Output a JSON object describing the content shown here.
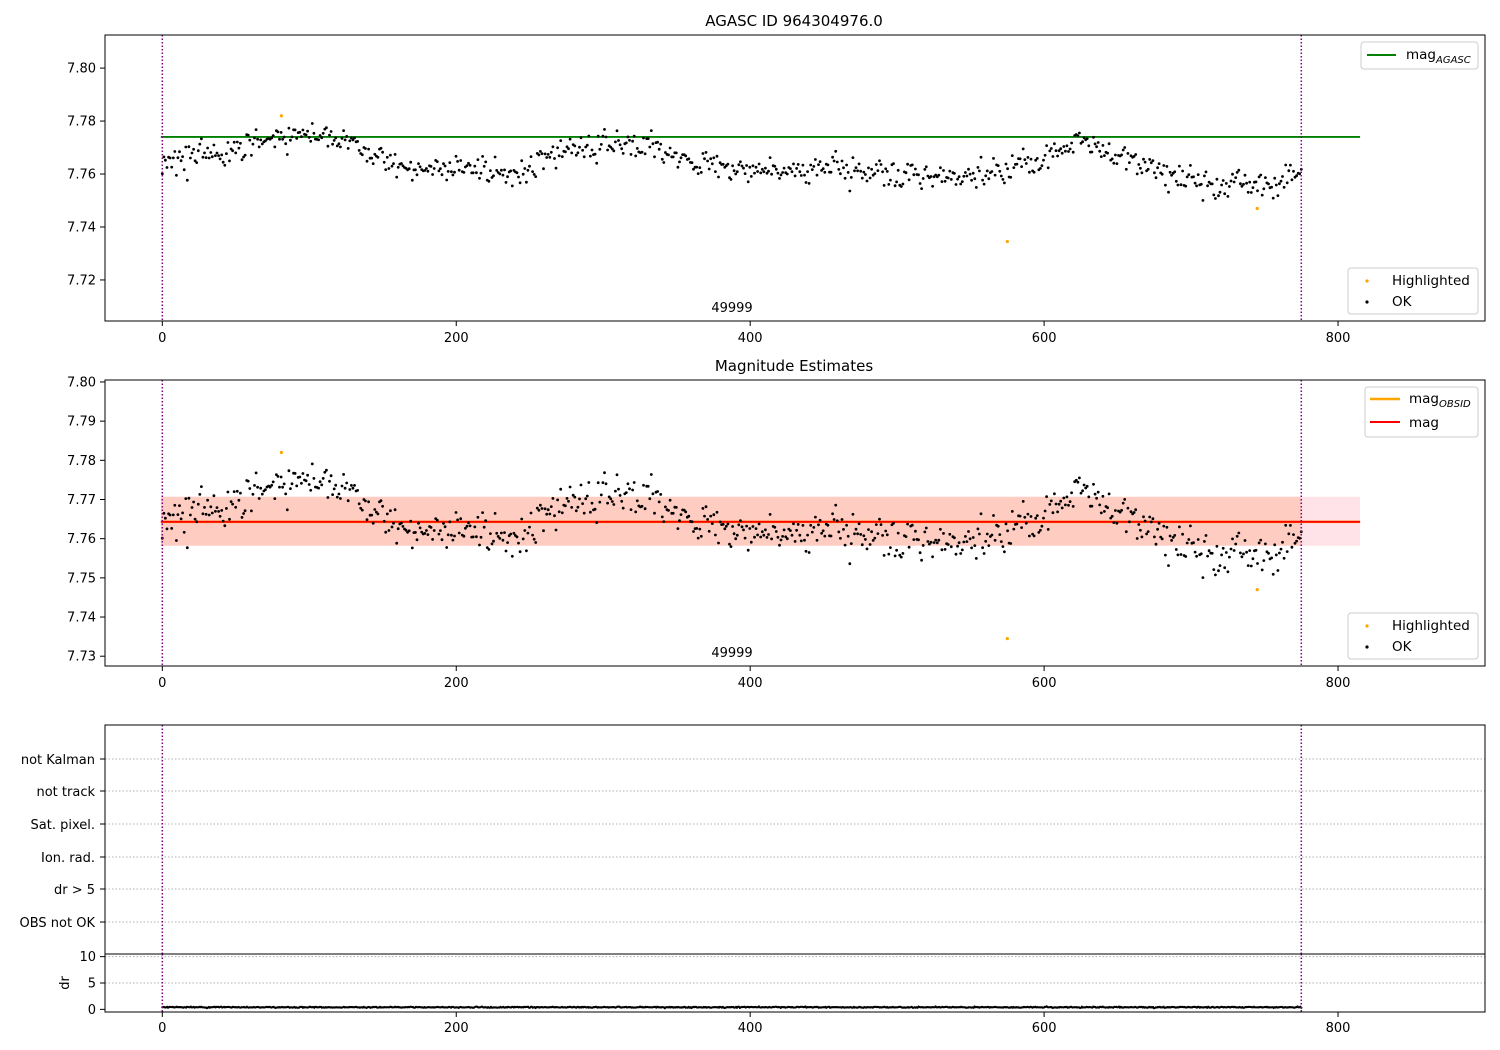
{
  "colors": {
    "agasc_line": "#008000",
    "obsid_line": "#ffa500",
    "mag_line": "#ff0000",
    "band_fill": "#ffc0cb",
    "band_inner": "#ffa07a",
    "ok_points": "#000000",
    "highlighted_points": "#ffa500",
    "vline": "#800080"
  },
  "chart_data": [
    {
      "type": "scatter",
      "title": "AGASC ID 964304976.0",
      "annotation": "49999",
      "xlim": [
        -39,
        900
      ],
      "ylim": [
        7.7045,
        7.8125
      ],
      "xticks": [
        0,
        200,
        400,
        600,
        800
      ],
      "yticks": [
        7.72,
        7.74,
        7.76,
        7.78,
        7.8
      ],
      "ytick_labels": [
        "7.72",
        "7.74",
        "7.76",
        "7.78",
        "7.80"
      ],
      "vlines": [
        0,
        775
      ],
      "hlines": [
        {
          "name": "mag_AGASC",
          "y": 7.774,
          "x": [
            -1,
            815
          ]
        }
      ],
      "legend_top": {
        "position": "top-right",
        "entries": [
          {
            "label": "mag",
            "sub": "AGASC",
            "kind": "line",
            "color_key": "agasc_line"
          }
        ]
      },
      "legend_bottom": {
        "position": "bottom-right",
        "entries": [
          {
            "label": "Highlighted",
            "kind": "point",
            "color_key": "highlighted_points"
          },
          {
            "label": "OK",
            "kind": "point",
            "color_key": "ok_points"
          }
        ]
      },
      "series": [
        {
          "name": "Highlighted",
          "points": [
            [
              81,
              7.782
            ],
            [
              575,
              7.7345
            ],
            [
              745,
              7.747
            ]
          ]
        },
        {
          "name": "OK",
          "profile": [
            [
              0,
              7.765
            ],
            [
              30,
              7.767
            ],
            [
              60,
              7.771
            ],
            [
              80,
              7.774
            ],
            [
              125,
              7.773
            ],
            [
              150,
              7.765
            ],
            [
              170,
              7.761
            ],
            [
              200,
              7.7615
            ],
            [
              240,
              7.7605
            ],
            [
              270,
              7.768
            ],
            [
              300,
              7.7715
            ],
            [
              340,
              7.77
            ],
            [
              360,
              7.764
            ],
            [
              400,
              7.762
            ],
            [
              450,
              7.762
            ],
            [
              500,
              7.7595
            ],
            [
              550,
              7.759
            ],
            [
              580,
              7.763
            ],
            [
              600,
              7.766
            ],
            [
              625,
              7.773
            ],
            [
              650,
              7.767
            ],
            [
              680,
              7.76
            ],
            [
              720,
              7.755
            ],
            [
              750,
              7.755
            ],
            [
              775,
              7.762
            ]
          ],
          "count": 730,
          "scatter": 0.0065
        }
      ]
    },
    {
      "type": "scatter",
      "title": "Magnitude Estimates",
      "annotation": "49999",
      "xlim": [
        -39,
        900
      ],
      "ylim": [
        7.7275,
        7.8005
      ],
      "xticks": [
        0,
        200,
        400,
        600,
        800
      ],
      "yticks": [
        7.73,
        7.74,
        7.75,
        7.76,
        7.77,
        7.78,
        7.79,
        7.8
      ],
      "ytick_labels": [
        "7.73",
        "7.74",
        "7.75",
        "7.76",
        "7.77",
        "7.78",
        "7.79",
        "7.80"
      ],
      "vlines": [
        0,
        775
      ],
      "hlines": [
        {
          "name": "mag_OBSID",
          "y": 7.7643,
          "x": [
            -1,
            815
          ]
        },
        {
          "name": "mag",
          "y": 7.7643,
          "x": [
            -1,
            815
          ]
        }
      ],
      "bands": [
        {
          "y": [
            7.7582,
            7.7707
          ],
          "x": [
            -1,
            815
          ],
          "color_key": "band_fill"
        },
        {
          "y": [
            7.7582,
            7.7707
          ],
          "x": [
            -1,
            775
          ],
          "color_key": "band_inner"
        }
      ],
      "legend_top": {
        "position": "top-right",
        "entries": [
          {
            "label": "mag",
            "sub": "OBSID",
            "kind": "line",
            "color_key": "obsid_line"
          },
          {
            "label": "mag",
            "sub": "",
            "kind": "line",
            "color_key": "mag_line"
          }
        ]
      },
      "legend_bottom": {
        "position": "bottom-right",
        "entries": [
          {
            "label": "Highlighted",
            "kind": "point",
            "color_key": "highlighted_points"
          },
          {
            "label": "OK",
            "kind": "point",
            "color_key": "ok_points"
          }
        ]
      },
      "series": [
        {
          "name": "Highlighted",
          "points": [
            [
              81,
              7.782
            ],
            [
              575,
              7.7345
            ],
            [
              745,
              7.747
            ]
          ]
        },
        {
          "name": "OK",
          "profile": [
            [
              0,
              7.765
            ],
            [
              30,
              7.767
            ],
            [
              60,
              7.771
            ],
            [
              80,
              7.774
            ],
            [
              125,
              7.773
            ],
            [
              150,
              7.765
            ],
            [
              170,
              7.761
            ],
            [
              200,
              7.7615
            ],
            [
              240,
              7.7605
            ],
            [
              270,
              7.768
            ],
            [
              300,
              7.7715
            ],
            [
              340,
              7.77
            ],
            [
              360,
              7.764
            ],
            [
              400,
              7.762
            ],
            [
              450,
              7.762
            ],
            [
              500,
              7.7595
            ],
            [
              550,
              7.759
            ],
            [
              580,
              7.763
            ],
            [
              600,
              7.766
            ],
            [
              625,
              7.773
            ],
            [
              650,
              7.767
            ],
            [
              680,
              7.76
            ],
            [
              720,
              7.755
            ],
            [
              750,
              7.755
            ],
            [
              775,
              7.762
            ]
          ],
          "count": 730,
          "scatter": 0.0065
        }
      ]
    },
    {
      "type": "scatter",
      "title": "",
      "xlim": [
        -39,
        900
      ],
      "vlines": [
        0,
        775
      ],
      "flag_rows": [
        "not Kalman",
        "not track",
        "Sat. pixel.",
        "Ion. rad.",
        "dr > 5",
        "OBS not OK"
      ],
      "dr_panel": {
        "ylabel": "dr",
        "ylim": [
          -0.5,
          10.5
        ],
        "yticks": [
          0,
          5,
          10
        ],
        "ytick_labels": [
          "0",
          "5",
          "10"
        ],
        "xticks": [
          0,
          200,
          400,
          600,
          800
        ],
        "gridlines": [
          5,
          10
        ],
        "series": [
          {
            "name": "dr",
            "profile": [
              [
                0,
                0.4
              ],
              [
                775,
                0.4
              ]
            ],
            "count": 1200,
            "scatter": 0.15
          }
        ]
      }
    }
  ]
}
